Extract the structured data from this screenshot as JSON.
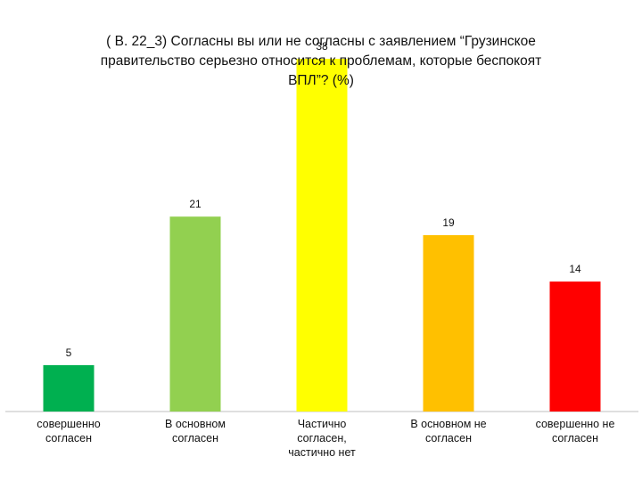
{
  "chart_data": {
    "type": "bar",
    "title_lines": [
      "( B. 22_3)  Согласны вы или не согласны с заявлением “Грузинское",
      "правительство серьезно относится к проблемам, которые беспокоят",
      "ВПЛ”?  (%)"
    ],
    "categories": [
      [
        "совершенно",
        "согласен"
      ],
      [
        "В основном",
        "согласен"
      ],
      [
        "Частично",
        "согласен,",
        "частично нет"
      ],
      [
        "В основном не",
        "согласен"
      ],
      [
        "совершенно не",
        "согласен"
      ]
    ],
    "values": [
      5,
      21,
      38,
      19,
      14
    ],
    "data_labels": [
      "5",
      "21",
      "38",
      "19",
      "14"
    ],
    "colors": [
      "#00B050",
      "#92D050",
      "#FFFF00",
      "#FFC000",
      "#FF0000"
    ],
    "ylim": [
      0,
      40
    ],
    "grid": false,
    "legend": "none"
  }
}
